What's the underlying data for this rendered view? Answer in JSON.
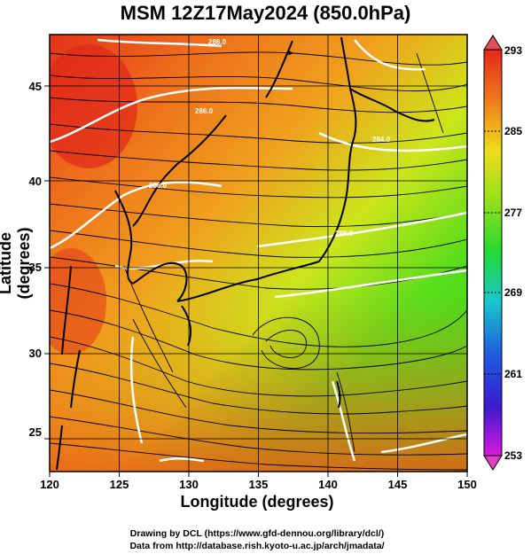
{
  "title": "MSM 12Z17May2024 (850.0hPa)",
  "xlabel": "Longitude (degrees)",
  "ylabel": "Latitude  (degrees)",
  "credit_line1": "Drawing by DCL (https://www.gfd-dennou.org/library/dcl/)",
  "credit_line2": "Data from http://database.rish.kyoto-u.ac.jp/arch/jmadata/",
  "x_ticks": [
    "120",
    "125",
    "130",
    "135",
    "140",
    "145",
    "150"
  ],
  "y_ticks": [
    "25",
    "30",
    "35",
    "40",
    "45"
  ],
  "colorbar_ticks": [
    "293",
    "285",
    "277",
    "269",
    "261",
    "253"
  ],
  "contour_labels": [
    "286.0",
    "286.0",
    "286.0",
    "288.0",
    "284.0"
  ],
  "colors": {
    "warm": "#e4280e",
    "mid": "#f07a1a",
    "yellow": "#d6e21a",
    "green": "#2ad81a",
    "cyan": "#16c9d8",
    "blue": "#1f3ad8",
    "magenta": "#d81ae0"
  }
}
